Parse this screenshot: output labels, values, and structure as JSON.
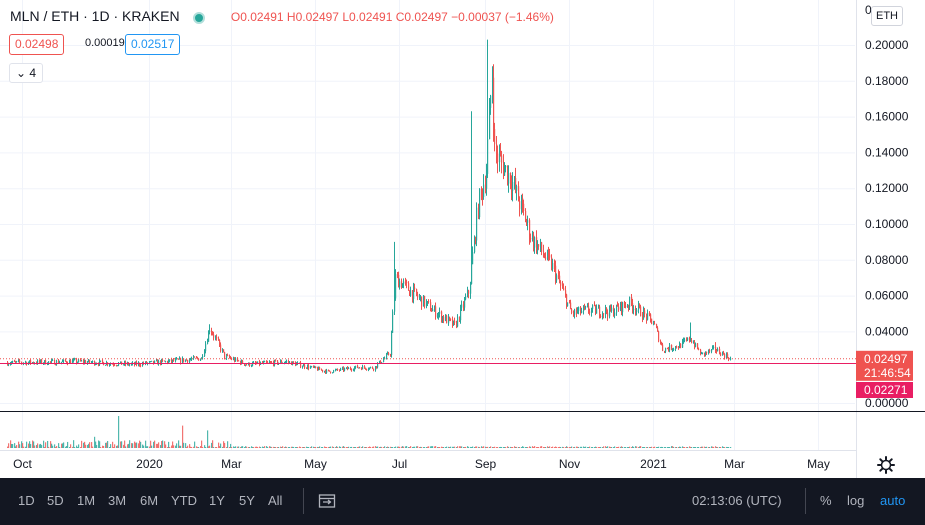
{
  "legend": {
    "symbol": "MLN / ETH · 1D · KRAKEN",
    "o_label": "O",
    "o": "0.02491",
    "h_label": "H",
    "h": "0.02497",
    "l_label": "L",
    "l": "0.02491",
    "c_label": "C",
    "c": "0.02497",
    "change": "−0.00037 (−1.46%)"
  },
  "quotes": {
    "bid": "0.02498",
    "spread": "0.00019",
    "ask": "0.02517"
  },
  "indicators_collapse": "4",
  "unit_label": "ETH",
  "price_axis": {
    "labels": [
      "0.20000",
      "0.18000",
      "0.16000",
      "0.14000",
      "0.12000",
      "0.10000",
      "0.08000",
      "0.06000",
      "0.04000",
      "0.00000"
    ],
    "top_partial": "0"
  },
  "last_price": {
    "value": "0.02497",
    "countdown": "21:46:54",
    "color": "#ef5350"
  },
  "horizontal_line": {
    "value": "0.02271",
    "color": "#e91e63"
  },
  "time_axis": [
    "Oct",
    "2020",
    "Mar",
    "May",
    "Jul",
    "Sep",
    "Nov",
    "2021",
    "Mar",
    "May"
  ],
  "bottom_bar": {
    "ranges": [
      "1D",
      "5D",
      "1M",
      "3M",
      "6M",
      "YTD",
      "1Y",
      "5Y",
      "All"
    ],
    "clock": "02:13:06 (UTC)",
    "percent": "%",
    "log": "log",
    "auto": "auto",
    "auto_color": "#2196f3"
  },
  "colors": {
    "up": "#26a69a",
    "down": "#ef5350"
  },
  "chart_data": {
    "type": "candlestick",
    "ylim": [
      0,
      0.205
    ],
    "yaxis_ticks": [
      0,
      0.04,
      0.06,
      0.08,
      0.1,
      0.12,
      0.14,
      0.16,
      0.18,
      0.2
    ],
    "anchors": [
      [
        "2019-09-20",
        0.0225
      ],
      [
        "2019-10-15",
        0.0228
      ],
      [
        "2019-11-10",
        0.0232
      ],
      [
        "2019-12-20",
        0.0215
      ],
      [
        "2020-01-20",
        0.0235
      ],
      [
        "2020-02-08",
        0.025
      ],
      [
        "2020-02-14",
        0.042
      ],
      [
        "2020-02-25",
        0.026
      ],
      [
        "2020-03-12",
        0.0215
      ],
      [
        "2020-04-10",
        0.023
      ],
      [
        "2020-05-10",
        0.0175
      ],
      [
        "2020-06-01",
        0.02
      ],
      [
        "2020-06-12",
        0.0195
      ],
      [
        "2020-06-24",
        0.028
      ],
      [
        "2020-06-28",
        0.07
      ],
      [
        "2020-07-05",
        0.065
      ],
      [
        "2020-07-25",
        0.052
      ],
      [
        "2020-08-10",
        0.043
      ],
      [
        "2020-08-20",
        0.062
      ],
      [
        "2020-08-27",
        0.11
      ],
      [
        "2020-09-02",
        0.13
      ],
      [
        "2020-09-06",
        0.185
      ],
      [
        "2020-09-08",
        0.14
      ],
      [
        "2020-09-20",
        0.125
      ],
      [
        "2020-10-05",
        0.092
      ],
      [
        "2020-10-20",
        0.076
      ],
      [
        "2020-11-03",
        0.05
      ],
      [
        "2020-11-15",
        0.052
      ],
      [
        "2020-12-01",
        0.051
      ],
      [
        "2020-12-15",
        0.056
      ],
      [
        "2021-01-01",
        0.045
      ],
      [
        "2021-01-08",
        0.03
      ],
      [
        "2021-01-20",
        0.032
      ],
      [
        "2021-01-28",
        0.036
      ],
      [
        "2021-02-05",
        0.027
      ],
      [
        "2021-02-15",
        0.03
      ],
      [
        "2021-02-26",
        0.02497
      ]
    ],
    "spikes": [
      [
        "2020-02-14",
        0.044
      ],
      [
        "2020-06-27",
        0.09
      ],
      [
        "2020-08-22",
        0.163
      ],
      [
        "2020-09-03",
        0.203
      ],
      [
        "2021-01-28",
        0.045
      ],
      [
        "2021-02-15",
        0.034
      ]
    ],
    "start": "2019-09-20",
    "end": "2021-02-26",
    "volume_spikes": [
      [
        "2019-12-10",
        1.0
      ],
      [
        "2019-11-22",
        0.35
      ],
      [
        "2020-01-25",
        0.7
      ],
      [
        "2020-02-12",
        0.55
      ]
    ]
  }
}
